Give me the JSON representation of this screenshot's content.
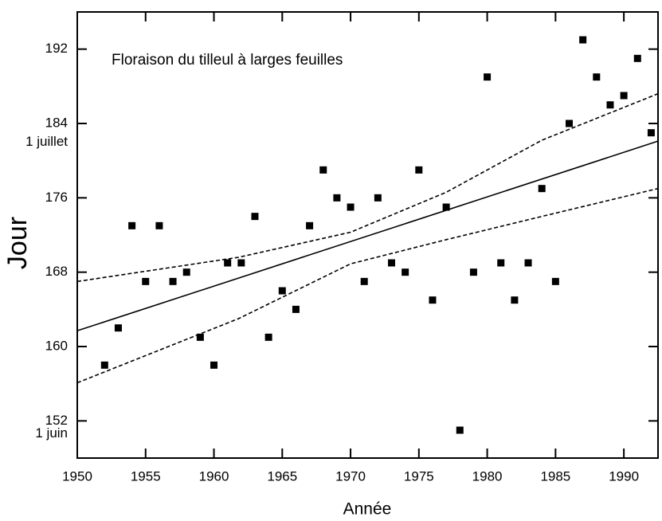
{
  "chart_data": {
    "type": "scatter",
    "title": "Floraison du tilleul à larges feuilles",
    "xlabel": "Année",
    "ylabel": "Jour",
    "x": [
      1952,
      1953,
      1954,
      1955,
      1956,
      1957,
      1958,
      1959,
      1960,
      1961,
      1962,
      1963,
      1964,
      1965,
      1966,
      1967,
      1968,
      1969,
      1970,
      1971,
      1972,
      1973,
      1974,
      1975,
      1976,
      1977,
      1978,
      1979,
      1980,
      1981,
      1982,
      1983,
      1984,
      1985,
      1986,
      1987,
      1988,
      1989,
      1990,
      1991,
      1992
    ],
    "values": [
      158,
      162,
      173,
      167,
      173,
      167,
      168,
      161,
      158,
      169,
      169,
      174,
      161,
      166,
      164,
      173,
      179,
      176,
      175,
      167,
      176,
      169,
      168,
      179,
      165,
      175,
      151,
      168,
      189,
      169,
      165,
      169,
      177,
      167,
      184,
      193,
      189,
      186,
      187,
      191,
      183
    ],
    "color": "#000000",
    "fit": {
      "x": [
        1950,
        1992.5
      ],
      "y": [
        161.7,
        182.1
      ]
    },
    "band_upper": {
      "x": [
        1950,
        1961.8,
        1970,
        1977,
        1984,
        1992.5
      ],
      "y": [
        167,
        169.6,
        172.3,
        176.6,
        182.2,
        187.2
      ]
    },
    "band_lower": {
      "x": [
        1950,
        1961.8,
        1970,
        1977,
        1984,
        1992.5
      ],
      "y": [
        156.1,
        163,
        168.9,
        171.5,
        174,
        177
      ]
    },
    "xlim": [
      1950,
      1992.5
    ],
    "xticks": [
      1950,
      1955,
      1960,
      1965,
      1970,
      1975,
      1980,
      1985,
      1990
    ],
    "ylim": [
      148,
      196
    ],
    "yticks": [
      152,
      160,
      168,
      176,
      184,
      192
    ],
    "date_labels": [
      {
        "value": 182,
        "label": "1 juillet"
      },
      {
        "value": 152,
        "label": "1 juin"
      }
    ]
  }
}
